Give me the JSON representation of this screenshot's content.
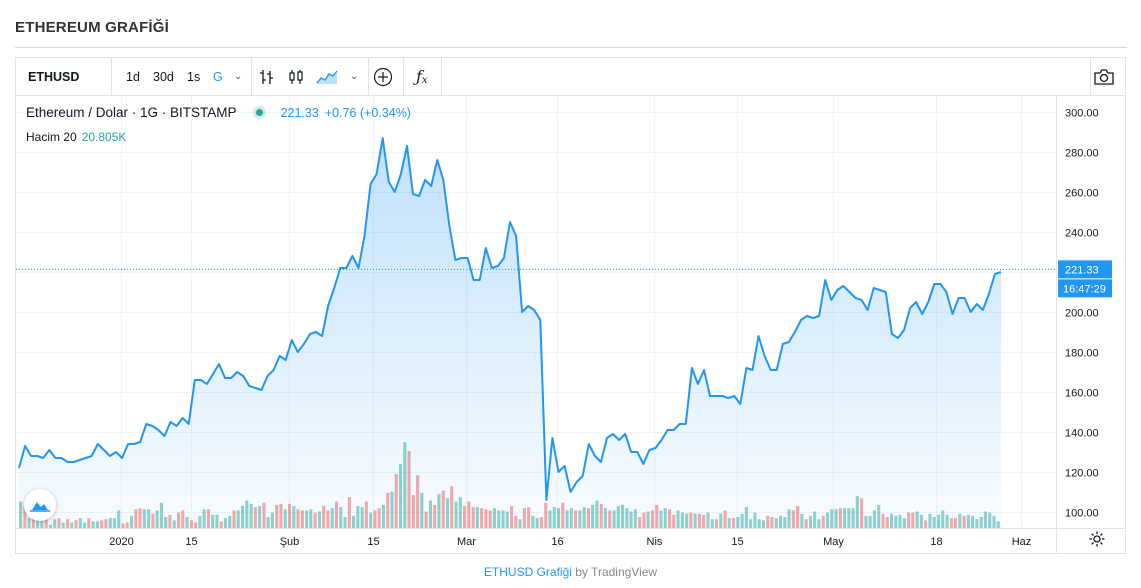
{
  "page": {
    "title": "ETHEREUM GRAFİĞİ"
  },
  "toolbar": {
    "symbol": "ETHUSD",
    "intervals": [
      "1d",
      "30d",
      "1s",
      "G"
    ],
    "active_interval": "G",
    "icons": [
      "bar-chart-icon",
      "candles-icon",
      "area-chart-icon",
      "compare-add-icon",
      "indicators-icon",
      "camera-icon"
    ]
  },
  "legend": {
    "title": "Ethereum / Dolar · 1G · BITSTAMP",
    "price": "221.33",
    "change": "+0.76 (+0.34%)",
    "volume_label": "Hacim 20",
    "volume_value": "20.805K"
  },
  "price_axis": {
    "last_price": "221.33",
    "countdown": "16:47:29"
  },
  "footer": {
    "link": "ETHUSD Grafiği",
    "by": "by TradingView"
  },
  "colors": {
    "line": "#2196f3",
    "volume_up": "#26a69a",
    "volume_down": "#ef5350",
    "accent": "#2196f3"
  },
  "chart_data": {
    "type": "area",
    "title": "ETHEREUM GRAFİĞİ",
    "series": [
      {
        "name": "Ethereum / Dolar",
        "values": [
          122,
          133,
          128,
          128,
          127,
          131,
          127,
          127,
          125,
          125,
          126,
          127,
          128,
          134,
          131,
          128,
          130,
          127,
          134,
          134,
          135,
          144,
          143,
          141,
          138,
          145,
          143,
          147,
          144,
          166,
          166,
          164,
          169,
          174,
          167,
          167,
          170,
          168,
          163,
          162,
          161,
          168,
          171,
          178,
          176,
          186,
          180,
          184,
          189,
          190,
          188,
          203,
          212,
          222,
          222,
          228,
          222,
          238,
          264,
          269,
          287,
          265,
          260,
          269,
          283,
          259,
          258,
          266,
          263,
          276,
          266,
          243,
          226,
          227,
          227,
          216,
          216,
          232,
          222,
          223,
          227,
          245,
          238,
          200,
          203,
          201,
          196,
          106,
          137,
          120,
          123,
          110,
          115,
          118,
          134,
          128,
          125,
          137,
          139,
          136,
          139,
          130,
          130,
          124,
          131,
          132,
          136,
          141,
          141,
          144,
          144,
          172,
          164,
          171,
          158,
          158,
          158,
          157,
          158,
          154,
          172,
          171,
          188,
          178,
          171,
          171,
          184,
          185,
          190,
          196,
          198,
          197,
          198,
          216,
          206,
          211,
          213,
          210,
          207,
          206,
          201,
          212,
          211,
          210,
          189,
          187,
          191,
          202,
          205,
          199,
          205,
          214,
          214,
          210,
          199,
          207,
          207,
          200,
          204,
          201,
          209,
          219,
          220
        ]
      }
    ],
    "volume": [
      [
        24,
        1
      ],
      [
        20,
        0
      ],
      [
        9,
        1
      ],
      [
        11,
        0
      ],
      [
        7,
        1
      ],
      [
        10,
        1
      ],
      [
        9,
        0
      ],
      [
        3,
        1
      ],
      [
        8,
        1
      ],
      [
        9,
        0
      ],
      [
        5,
        1
      ],
      [
        8,
        0
      ],
      [
        5,
        1
      ],
      [
        7,
        0
      ],
      [
        9,
        1
      ],
      [
        5,
        1
      ],
      [
        9,
        0
      ],
      [
        6,
        1
      ],
      [
        6,
        1
      ],
      [
        7,
        0
      ],
      [
        8,
        0
      ],
      [
        9,
        1
      ],
      [
        9,
        1
      ],
      [
        16,
        1
      ],
      [
        4,
        0
      ],
      [
        5,
        0
      ],
      [
        11,
        1
      ],
      [
        17,
        0
      ],
      [
        18,
        0
      ],
      [
        17,
        1
      ],
      [
        17,
        1
      ],
      [
        13,
        0
      ],
      [
        16,
        1
      ],
      [
        23,
        1
      ],
      [
        10,
        1
      ],
      [
        12,
        0
      ],
      [
        7,
        1
      ],
      [
        14,
        0
      ],
      [
        16,
        0
      ],
      [
        10,
        1
      ],
      [
        7,
        0
      ],
      [
        5,
        0
      ],
      [
        11,
        1
      ],
      [
        17,
        1
      ],
      [
        17,
        0
      ],
      [
        12,
        1
      ],
      [
        12,
        1
      ],
      [
        6,
        0
      ],
      [
        9,
        1
      ],
      [
        11,
        1
      ],
      [
        16,
        0
      ],
      [
        16,
        1
      ],
      [
        20,
        1
      ],
      [
        25,
        1
      ],
      [
        22,
        1
      ],
      [
        19,
        0
      ],
      [
        20,
        1
      ],
      [
        23,
        0
      ],
      [
        10,
        1
      ],
      [
        14,
        1
      ],
      [
        21,
        0
      ],
      [
        22,
        0
      ],
      [
        17,
        1
      ],
      [
        22,
        0
      ],
      [
        20,
        1
      ],
      [
        17,
        0
      ],
      [
        16,
        0
      ],
      [
        16,
        1
      ],
      [
        17,
        1
      ],
      [
        14,
        0
      ],
      [
        15,
        1
      ],
      [
        20,
        0
      ],
      [
        16,
        0
      ],
      [
        18,
        1
      ],
      [
        24,
        0
      ],
      [
        19,
        1
      ],
      [
        10,
        1
      ],
      [
        28,
        0
      ],
      [
        11,
        1
      ],
      [
        20,
        1
      ],
      [
        19,
        1
      ],
      [
        24,
        0
      ],
      [
        14,
        1
      ],
      [
        16,
        0
      ],
      [
        18,
        0
      ],
      [
        21,
        1
      ],
      [
        32,
        0
      ],
      [
        33,
        1
      ],
      [
        49,
        0
      ],
      [
        58,
        1
      ],
      [
        78,
        1
      ],
      [
        70,
        0
      ],
      [
        30,
        0
      ],
      [
        48,
        0
      ],
      [
        32,
        1
      ],
      [
        15,
        0
      ],
      [
        25,
        1
      ],
      [
        21,
        0
      ],
      [
        31,
        1
      ],
      [
        34,
        0
      ],
      [
        27,
        1
      ],
      [
        38,
        0
      ],
      [
        24,
        1
      ],
      [
        28,
        1
      ],
      [
        20,
        0
      ],
      [
        24,
        0
      ],
      [
        19,
        0
      ],
      [
        19,
        1
      ],
      [
        18,
        0
      ],
      [
        17,
        0
      ],
      [
        16,
        0
      ],
      [
        18,
        1
      ],
      [
        16,
        1
      ],
      [
        16,
        1
      ],
      [
        15,
        1
      ],
      [
        20,
        0
      ],
      [
        11,
        0
      ],
      [
        8,
        1
      ],
      [
        18,
        0
      ],
      [
        19,
        0
      ],
      [
        11,
        1
      ],
      [
        9,
        1
      ],
      [
        10,
        0
      ],
      [
        23,
        0
      ],
      [
        16,
        1
      ],
      [
        19,
        1
      ],
      [
        18,
        1
      ],
      [
        23,
        0
      ],
      [
        16,
        1
      ],
      [
        18,
        1
      ],
      [
        16,
        0
      ],
      [
        16,
        1
      ],
      [
        19,
        1
      ],
      [
        18,
        0
      ],
      [
        21,
        1
      ],
      [
        25,
        1
      ],
      [
        22,
        0
      ],
      [
        18,
        1
      ],
      [
        16,
        0
      ],
      [
        16,
        1
      ],
      [
        20,
        1
      ],
      [
        21,
        1
      ],
      [
        18,
        1
      ],
      [
        15,
        1
      ],
      [
        17,
        1
      ],
      [
        10,
        0
      ],
      [
        14,
        0
      ],
      [
        15,
        1
      ],
      [
        16,
        0
      ],
      [
        21,
        0
      ],
      [
        16,
        1
      ],
      [
        18,
        1
      ],
      [
        17,
        0
      ],
      [
        12,
        0
      ],
      [
        16,
        1
      ],
      [
        14,
        1
      ],
      [
        13,
        1
      ],
      [
        14,
        0
      ],
      [
        13,
        1
      ],
      [
        13,
        0
      ],
      [
        12,
        0
      ],
      [
        14,
        1
      ],
      [
        8,
        1
      ],
      [
        8,
        0
      ],
      [
        13,
        1
      ],
      [
        16,
        0
      ],
      [
        9,
        1
      ],
      [
        9,
        0
      ],
      [
        10,
        1
      ],
      [
        13,
        1
      ],
      [
        19,
        1
      ],
      [
        8,
        1
      ],
      [
        14,
        1
      ],
      [
        8,
        1
      ],
      [
        7,
        1
      ],
      [
        11,
        0
      ],
      [
        10,
        0
      ],
      [
        9,
        1
      ],
      [
        11,
        1
      ],
      [
        10,
        1
      ],
      [
        17,
        1
      ],
      [
        16,
        0
      ],
      [
        20,
        0
      ],
      [
        13,
        1
      ],
      [
        8,
        0
      ],
      [
        11,
        1
      ],
      [
        15,
        1
      ],
      [
        8,
        1
      ],
      [
        11,
        0
      ],
      [
        14,
        1
      ],
      [
        17,
        1
      ],
      [
        17,
        1
      ],
      [
        18,
        0
      ],
      [
        18,
        1
      ],
      [
        18,
        1
      ],
      [
        18,
        1
      ],
      [
        29,
        1
      ],
      [
        27,
        0
      ],
      [
        11,
        1
      ],
      [
        11,
        1
      ],
      [
        16,
        1
      ],
      [
        21,
        1
      ],
      [
        13,
        0
      ],
      [
        10,
        0
      ],
      [
        13,
        1
      ],
      [
        11,
        1
      ],
      [
        12,
        1
      ],
      [
        9,
        1
      ],
      [
        14,
        0
      ],
      [
        14,
        0
      ],
      [
        15,
        1
      ],
      [
        12,
        1
      ],
      [
        7,
        0
      ],
      [
        13,
        1
      ],
      [
        10,
        1
      ],
      [
        12,
        1
      ],
      [
        16,
        1
      ],
      [
        12,
        1
      ],
      [
        9,
        0
      ],
      [
        9,
        0
      ],
      [
        13,
        1
      ],
      [
        11,
        0
      ],
      [
        12,
        1
      ],
      [
        11,
        1
      ],
      [
        8,
        1
      ],
      [
        10,
        1
      ],
      [
        15,
        1
      ],
      [
        14,
        1
      ],
      [
        11,
        1
      ],
      [
        6,
        1
      ]
    ],
    "x_ticks": [
      "2020",
      "15",
      "Şub",
      "15",
      "Mar",
      "16",
      "Nis",
      "15",
      "May",
      "18",
      "Haz"
    ],
    "y_ticks": [
      100,
      120,
      140,
      160,
      180,
      200,
      220,
      240,
      260,
      280,
      300
    ],
    "ylim": [
      92,
      308
    ],
    "xlabel": "",
    "ylabel": "",
    "grid": true,
    "last_value": 221.33
  }
}
